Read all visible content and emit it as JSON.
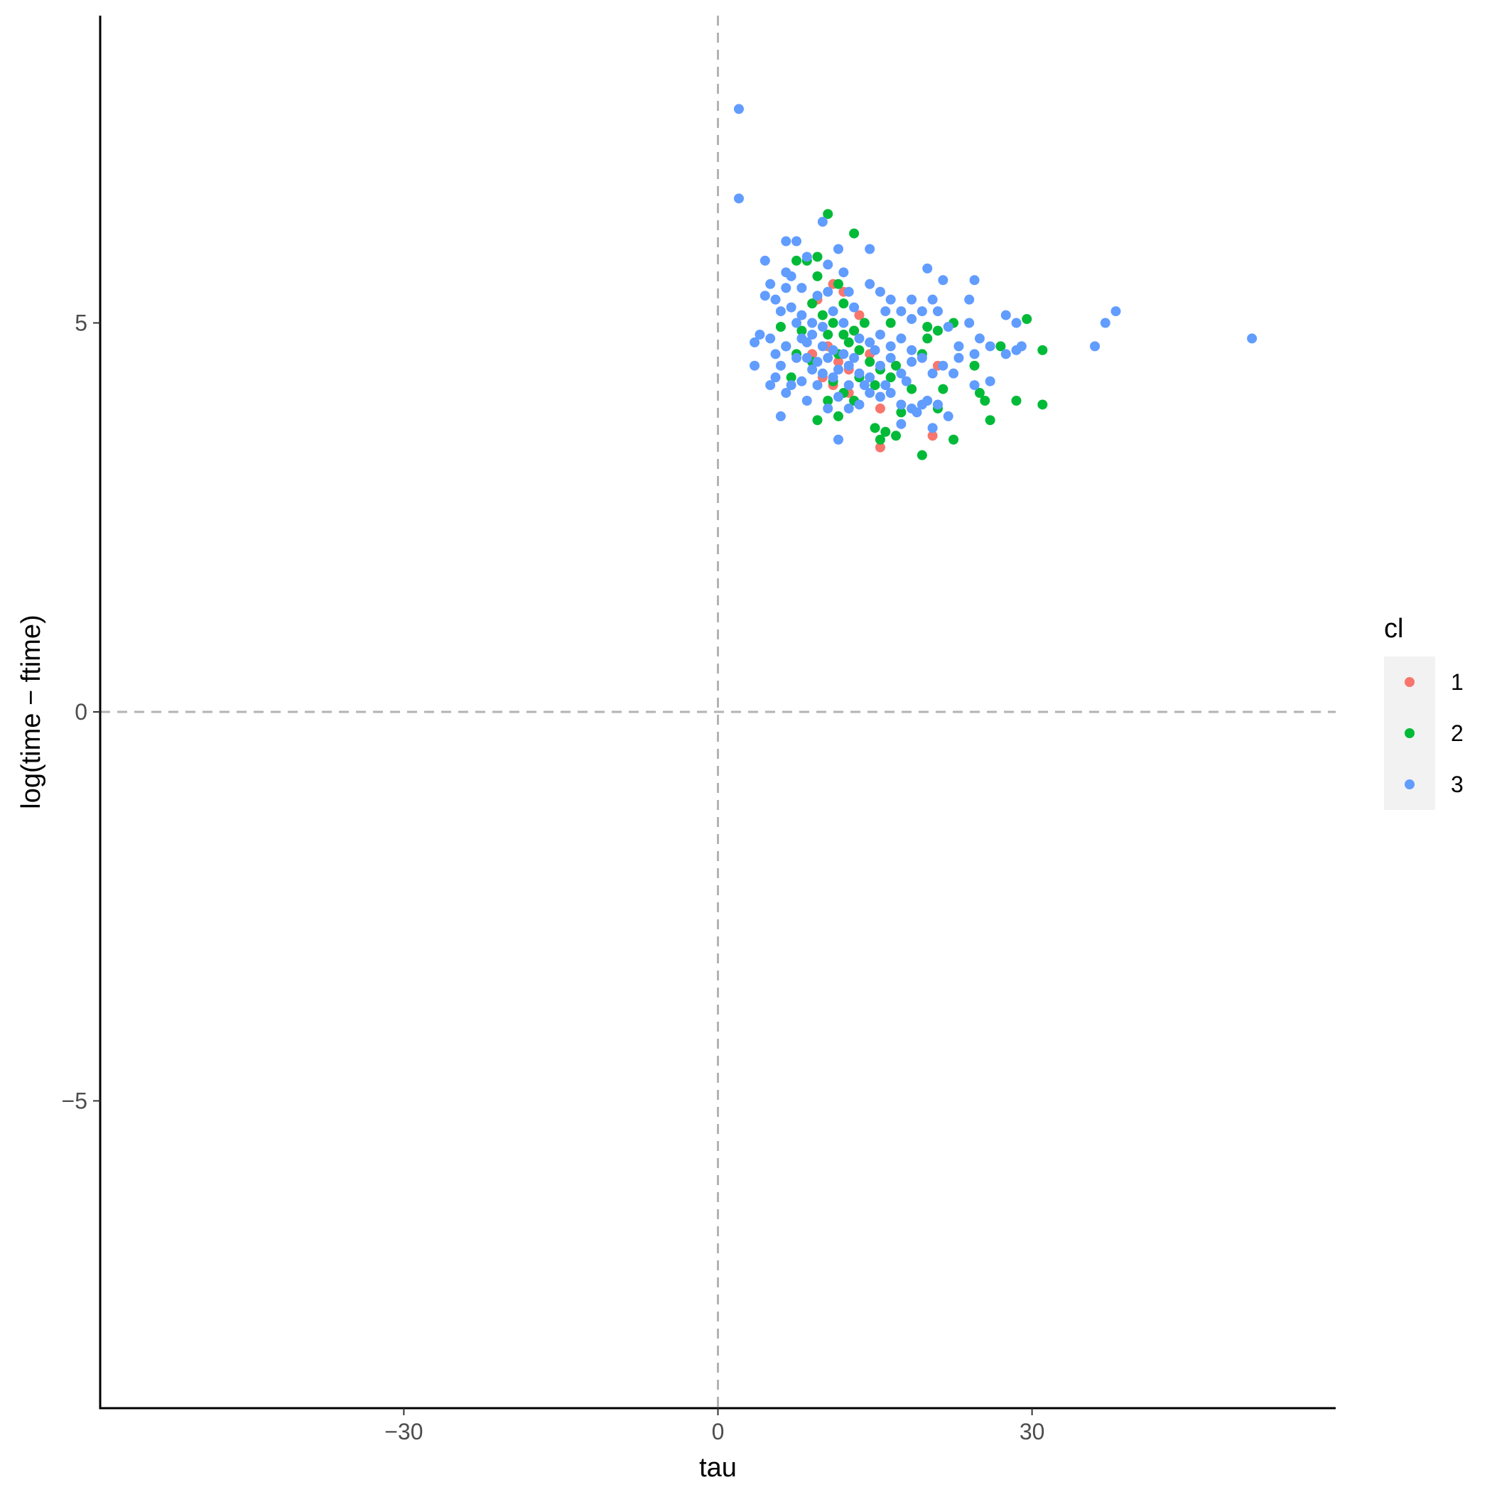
{
  "chart_data": {
    "type": "scatter",
    "xlabel": "tau",
    "ylabel": "log(time − ftime)",
    "xlim": [
      -59,
      59
    ],
    "ylim": [
      -8.95,
      8.95
    ],
    "x_ticks": [
      -30,
      0,
      30
    ],
    "x_tick_labels": [
      "−30",
      "0",
      "30"
    ],
    "y_ticks": [
      -5,
      0,
      5
    ],
    "y_tick_labels": [
      "−5",
      "0",
      "5"
    ],
    "grid": false,
    "reference_lines": {
      "x": 0,
      "y": 0,
      "style": "dashed",
      "color": "#b3b3b3"
    },
    "legend": {
      "title": "cl",
      "placement": "right",
      "entries": [
        {
          "label": "1",
          "color": "#F8766D"
        },
        {
          "label": "2",
          "color": "#00BA38"
        },
        {
          "label": "3",
          "color": "#619CFF"
        }
      ]
    },
    "series": [
      {
        "name": "1",
        "color": "#F8766D",
        "points": [
          [
            9.5,
            5.3
          ],
          [
            11.0,
            5.5
          ],
          [
            12.0,
            5.4
          ],
          [
            13.5,
            5.1
          ],
          [
            10.5,
            4.7
          ],
          [
            11.5,
            4.5
          ],
          [
            12.5,
            4.4
          ],
          [
            14.5,
            4.6
          ],
          [
            15.5,
            3.9
          ],
          [
            15.5,
            3.4
          ],
          [
            20.5,
            3.55
          ],
          [
            21.0,
            4.45
          ],
          [
            12.5,
            4.1
          ],
          [
            11.0,
            4.2
          ],
          [
            13.0,
            4.9
          ],
          [
            9.0,
            4.6
          ],
          [
            10.0,
            4.3
          ]
        ]
      },
      {
        "name": "2",
        "color": "#00BA38",
        "points": [
          [
            10.5,
            6.4
          ],
          [
            13.0,
            6.15
          ],
          [
            8.5,
            5.8
          ],
          [
            9.5,
            5.85
          ],
          [
            9.5,
            5.6
          ],
          [
            11.5,
            5.5
          ],
          [
            9.0,
            5.25
          ],
          [
            12.0,
            5.25
          ],
          [
            10.0,
            5.1
          ],
          [
            11.0,
            5.0
          ],
          [
            8.0,
            4.9
          ],
          [
            13.0,
            4.9
          ],
          [
            10.5,
            4.85
          ],
          [
            12.5,
            4.75
          ],
          [
            11.5,
            4.6
          ],
          [
            9.0,
            4.5
          ],
          [
            7.5,
            4.6
          ],
          [
            6.5,
            4.7
          ],
          [
            6.0,
            4.95
          ],
          [
            7.0,
            4.3
          ],
          [
            13.5,
            4.65
          ],
          [
            14.5,
            4.5
          ],
          [
            15.5,
            4.4
          ],
          [
            17.0,
            4.45
          ],
          [
            13.5,
            4.3
          ],
          [
            12.0,
            4.1
          ],
          [
            10.5,
            4.0
          ],
          [
            13.0,
            4.0
          ],
          [
            11.5,
            3.8
          ],
          [
            9.5,
            3.75
          ],
          [
            15.0,
            3.65
          ],
          [
            16.0,
            3.6
          ],
          [
            17.0,
            3.55
          ],
          [
            15.5,
            3.5
          ],
          [
            19.5,
            3.3
          ],
          [
            17.5,
            3.85
          ],
          [
            15.0,
            4.2
          ],
          [
            16.5,
            4.3
          ],
          [
            18.5,
            4.15
          ],
          [
            19.5,
            4.6
          ],
          [
            20.0,
            4.95
          ],
          [
            21.0,
            4.9
          ],
          [
            22.5,
            5.0
          ],
          [
            21.5,
            4.15
          ],
          [
            24.5,
            4.45
          ],
          [
            25.0,
            4.1
          ],
          [
            25.5,
            4.0
          ],
          [
            26.0,
            3.75
          ],
          [
            28.5,
            4.0
          ],
          [
            31.0,
            3.95
          ],
          [
            31.0,
            4.65
          ],
          [
            29.5,
            5.05
          ],
          [
            27.0,
            4.7
          ],
          [
            22.5,
            3.5
          ],
          [
            21.0,
            3.9
          ],
          [
            20.0,
            4.8
          ],
          [
            14.0,
            5.0
          ],
          [
            12.0,
            4.85
          ],
          [
            7.5,
            5.8
          ],
          [
            16.5,
            5.0
          ],
          [
            11.0,
            4.25
          ]
        ]
      },
      {
        "name": "3",
        "color": "#619CFF",
        "points": [
          [
            2.0,
            7.75
          ],
          [
            2.0,
            6.6
          ],
          [
            10.0,
            6.3
          ],
          [
            6.5,
            6.05
          ],
          [
            7.5,
            6.05
          ],
          [
            11.5,
            5.95
          ],
          [
            14.5,
            5.95
          ],
          [
            4.5,
            5.8
          ],
          [
            8.5,
            5.85
          ],
          [
            10.5,
            5.75
          ],
          [
            12.0,
            5.65
          ],
          [
            6.5,
            5.65
          ],
          [
            7.0,
            5.6
          ],
          [
            5.0,
            5.5
          ],
          [
            6.5,
            5.45
          ],
          [
            8.0,
            5.45
          ],
          [
            14.5,
            5.5
          ],
          [
            15.5,
            5.4
          ],
          [
            16.5,
            5.3
          ],
          [
            18.5,
            5.3
          ],
          [
            20.0,
            5.7
          ],
          [
            21.5,
            5.55
          ],
          [
            24.5,
            5.55
          ],
          [
            20.5,
            5.3
          ],
          [
            24.0,
            5.3
          ],
          [
            4.5,
            5.35
          ],
          [
            5.5,
            5.3
          ],
          [
            6.0,
            5.15
          ],
          [
            7.0,
            5.2
          ],
          [
            8.0,
            5.1
          ],
          [
            9.0,
            5.0
          ],
          [
            11.0,
            5.15
          ],
          [
            13.0,
            5.2
          ],
          [
            16.0,
            5.15
          ],
          [
            17.5,
            5.15
          ],
          [
            18.5,
            5.05
          ],
          [
            19.5,
            5.15
          ],
          [
            21.0,
            5.15
          ],
          [
            22.0,
            4.95
          ],
          [
            24.0,
            5.0
          ],
          [
            27.5,
            5.1
          ],
          [
            28.5,
            5.0
          ],
          [
            37.0,
            5.0
          ],
          [
            38.0,
            5.15
          ],
          [
            51.0,
            4.8
          ],
          [
            36.0,
            4.7
          ],
          [
            27.5,
            4.6
          ],
          [
            28.5,
            4.65
          ],
          [
            29.0,
            4.7
          ],
          [
            26.0,
            4.7
          ],
          [
            25.0,
            4.8
          ],
          [
            23.0,
            4.7
          ],
          [
            3.5,
            4.75
          ],
          [
            4.0,
            4.85
          ],
          [
            5.0,
            4.8
          ],
          [
            5.5,
            4.6
          ],
          [
            6.5,
            4.7
          ],
          [
            7.5,
            4.55
          ],
          [
            8.5,
            4.55
          ],
          [
            9.5,
            4.5
          ],
          [
            10.5,
            4.55
          ],
          [
            11.5,
            4.4
          ],
          [
            12.5,
            4.45
          ],
          [
            13.5,
            4.35
          ],
          [
            14.5,
            4.3
          ],
          [
            15.5,
            4.45
          ],
          [
            16.5,
            4.55
          ],
          [
            17.5,
            4.35
          ],
          [
            18.5,
            4.5
          ],
          [
            19.5,
            4.55
          ],
          [
            20.5,
            4.35
          ],
          [
            21.5,
            4.45
          ],
          [
            22.5,
            4.35
          ],
          [
            23.0,
            4.55
          ],
          [
            24.5,
            4.6
          ],
          [
            3.5,
            4.45
          ],
          [
            5.5,
            4.3
          ],
          [
            6.5,
            4.1
          ],
          [
            7.0,
            4.2
          ],
          [
            8.5,
            4.0
          ],
          [
            9.5,
            4.2
          ],
          [
            10.5,
            3.9
          ],
          [
            11.5,
            4.05
          ],
          [
            12.5,
            4.2
          ],
          [
            13.5,
            3.95
          ],
          [
            14.5,
            4.1
          ],
          [
            15.5,
            4.05
          ],
          [
            16.5,
            4.1
          ],
          [
            17.5,
            3.95
          ],
          [
            18.5,
            3.9
          ],
          [
            19.5,
            3.95
          ],
          [
            20.0,
            4.0
          ],
          [
            21.0,
            3.95
          ],
          [
            22.0,
            3.8
          ],
          [
            24.5,
            4.2
          ],
          [
            26.0,
            4.25
          ],
          [
            19.0,
            3.85
          ],
          [
            17.5,
            3.7
          ],
          [
            20.5,
            3.65
          ],
          [
            6.0,
            3.8
          ],
          [
            11.5,
            3.5
          ],
          [
            5.0,
            4.2
          ],
          [
            8.0,
            4.8
          ],
          [
            9.0,
            4.85
          ],
          [
            10.0,
            4.95
          ],
          [
            12.0,
            5.0
          ],
          [
            13.5,
            4.8
          ],
          [
            14.5,
            4.75
          ],
          [
            15.5,
            4.85
          ],
          [
            16.5,
            4.7
          ],
          [
            17.5,
            4.8
          ],
          [
            18.5,
            4.65
          ],
          [
            10.0,
            4.7
          ],
          [
            11.0,
            4.65
          ],
          [
            12.0,
            4.6
          ],
          [
            9.0,
            4.4
          ],
          [
            10.0,
            4.35
          ],
          [
            11.0,
            4.3
          ],
          [
            8.0,
            4.25
          ],
          [
            13.0,
            4.55
          ],
          [
            15.0,
            4.65
          ],
          [
            16.0,
            4.2
          ],
          [
            18.0,
            4.25
          ],
          [
            9.5,
            5.35
          ],
          [
            10.5,
            5.4
          ],
          [
            12.5,
            5.4
          ],
          [
            14.0,
            4.2
          ],
          [
            12.5,
            3.9
          ],
          [
            7.5,
            5.0
          ],
          [
            8.5,
            4.75
          ],
          [
            6.0,
            4.45
          ]
        ]
      }
    ]
  }
}
